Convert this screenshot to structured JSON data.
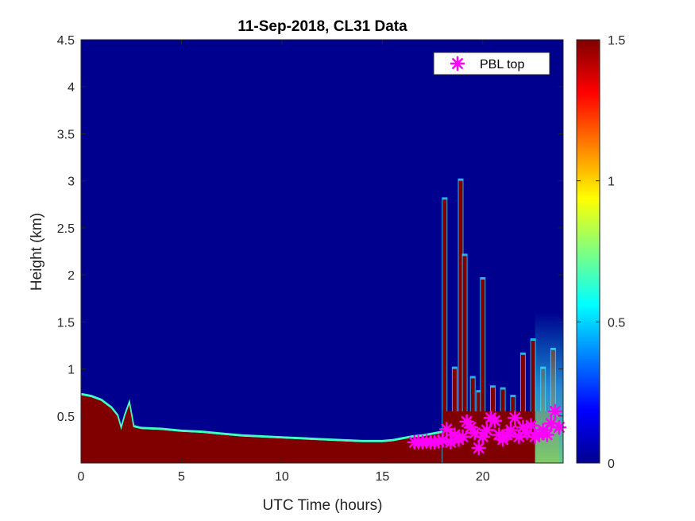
{
  "chart_data": {
    "type": "heatmap",
    "title": "11-Sep-2018, CL31 Data",
    "xlabel": "UTC Time (hours)",
    "ylabel": "Height (km)",
    "xlim": [
      0,
      24
    ],
    "ylim": [
      0,
      4.5
    ],
    "xticks": [
      0,
      5,
      10,
      15,
      20
    ],
    "yticks": [
      0.5,
      1,
      1.5,
      2,
      2.5,
      3,
      3.5,
      4,
      4.5
    ],
    "colorbar": {
      "range": [
        0,
        1.5
      ],
      "ticks": [
        0,
        0.5,
        1,
        1.5
      ],
      "colormap": "jet"
    },
    "colors": {
      "background": "#00008F",
      "saturated": "#800000",
      "marker": "#FF00FF"
    },
    "layer_top_km": {
      "hours": [
        0,
        0.5,
        1,
        1.5,
        1.8,
        2,
        2.2,
        2.4,
        2.6,
        3,
        4,
        5,
        6,
        7,
        8,
        9,
        10,
        11,
        12,
        13,
        14,
        15,
        15.5,
        16,
        16.5,
        17,
        17.5,
        18
      ],
      "height": [
        0.72,
        0.7,
        0.66,
        0.58,
        0.5,
        0.35,
        0.5,
        0.62,
        0.38,
        0.36,
        0.35,
        0.33,
        0.32,
        0.3,
        0.28,
        0.27,
        0.26,
        0.25,
        0.24,
        0.23,
        0.22,
        0.22,
        0.23,
        0.25,
        0.27,
        0.28,
        0.3,
        0.32
      ]
    },
    "late_day_columns": [
      {
        "hour": 18.1,
        "top_km": 2.8
      },
      {
        "hour": 18.6,
        "top_km": 1.0
      },
      {
        "hour": 18.9,
        "top_km": 3.0
      },
      {
        "hour": 19.1,
        "top_km": 2.2
      },
      {
        "hour": 19.5,
        "top_km": 0.9
      },
      {
        "hour": 19.8,
        "top_km": 0.75
      },
      {
        "hour": 20.0,
        "top_km": 1.95
      },
      {
        "hour": 20.5,
        "top_km": 0.8
      },
      {
        "hour": 21.0,
        "top_km": 0.78
      },
      {
        "hour": 21.5,
        "top_km": 0.7
      },
      {
        "hour": 22.0,
        "top_km": 1.15
      },
      {
        "hour": 22.5,
        "top_km": 1.3
      },
      {
        "hour": 23.0,
        "top_km": 1.0
      },
      {
        "hour": 23.5,
        "top_km": 1.2
      }
    ],
    "series": [
      {
        "name": "PBL top",
        "marker": "asterisk",
        "x": [
          16.6,
          16.8,
          17.0,
          17.2,
          17.4,
          17.6,
          17.8,
          18.0,
          18.2,
          18.4,
          18.6,
          18.8,
          19.0,
          19.2,
          19.4,
          19.6,
          19.8,
          20.0,
          20.2,
          20.4,
          20.6,
          20.8,
          21.0,
          21.2,
          21.4,
          21.6,
          21.8,
          22.0,
          22.2,
          22.4,
          22.6,
          22.8,
          23.0,
          23.2,
          23.4,
          23.6,
          23.8
        ],
        "y": [
          0.22,
          0.22,
          0.22,
          0.23,
          0.22,
          0.22,
          0.23,
          0.24,
          0.36,
          0.22,
          0.3,
          0.25,
          0.28,
          0.44,
          0.38,
          0.32,
          0.16,
          0.28,
          0.35,
          0.48,
          0.45,
          0.3,
          0.25,
          0.3,
          0.35,
          0.48,
          0.28,
          0.38,
          0.32,
          0.4,
          0.28,
          0.3,
          0.35,
          0.3,
          0.42,
          0.55,
          0.38
        ]
      }
    ],
    "legend": {
      "entries": [
        "PBL top"
      ],
      "position": "top-right"
    }
  }
}
